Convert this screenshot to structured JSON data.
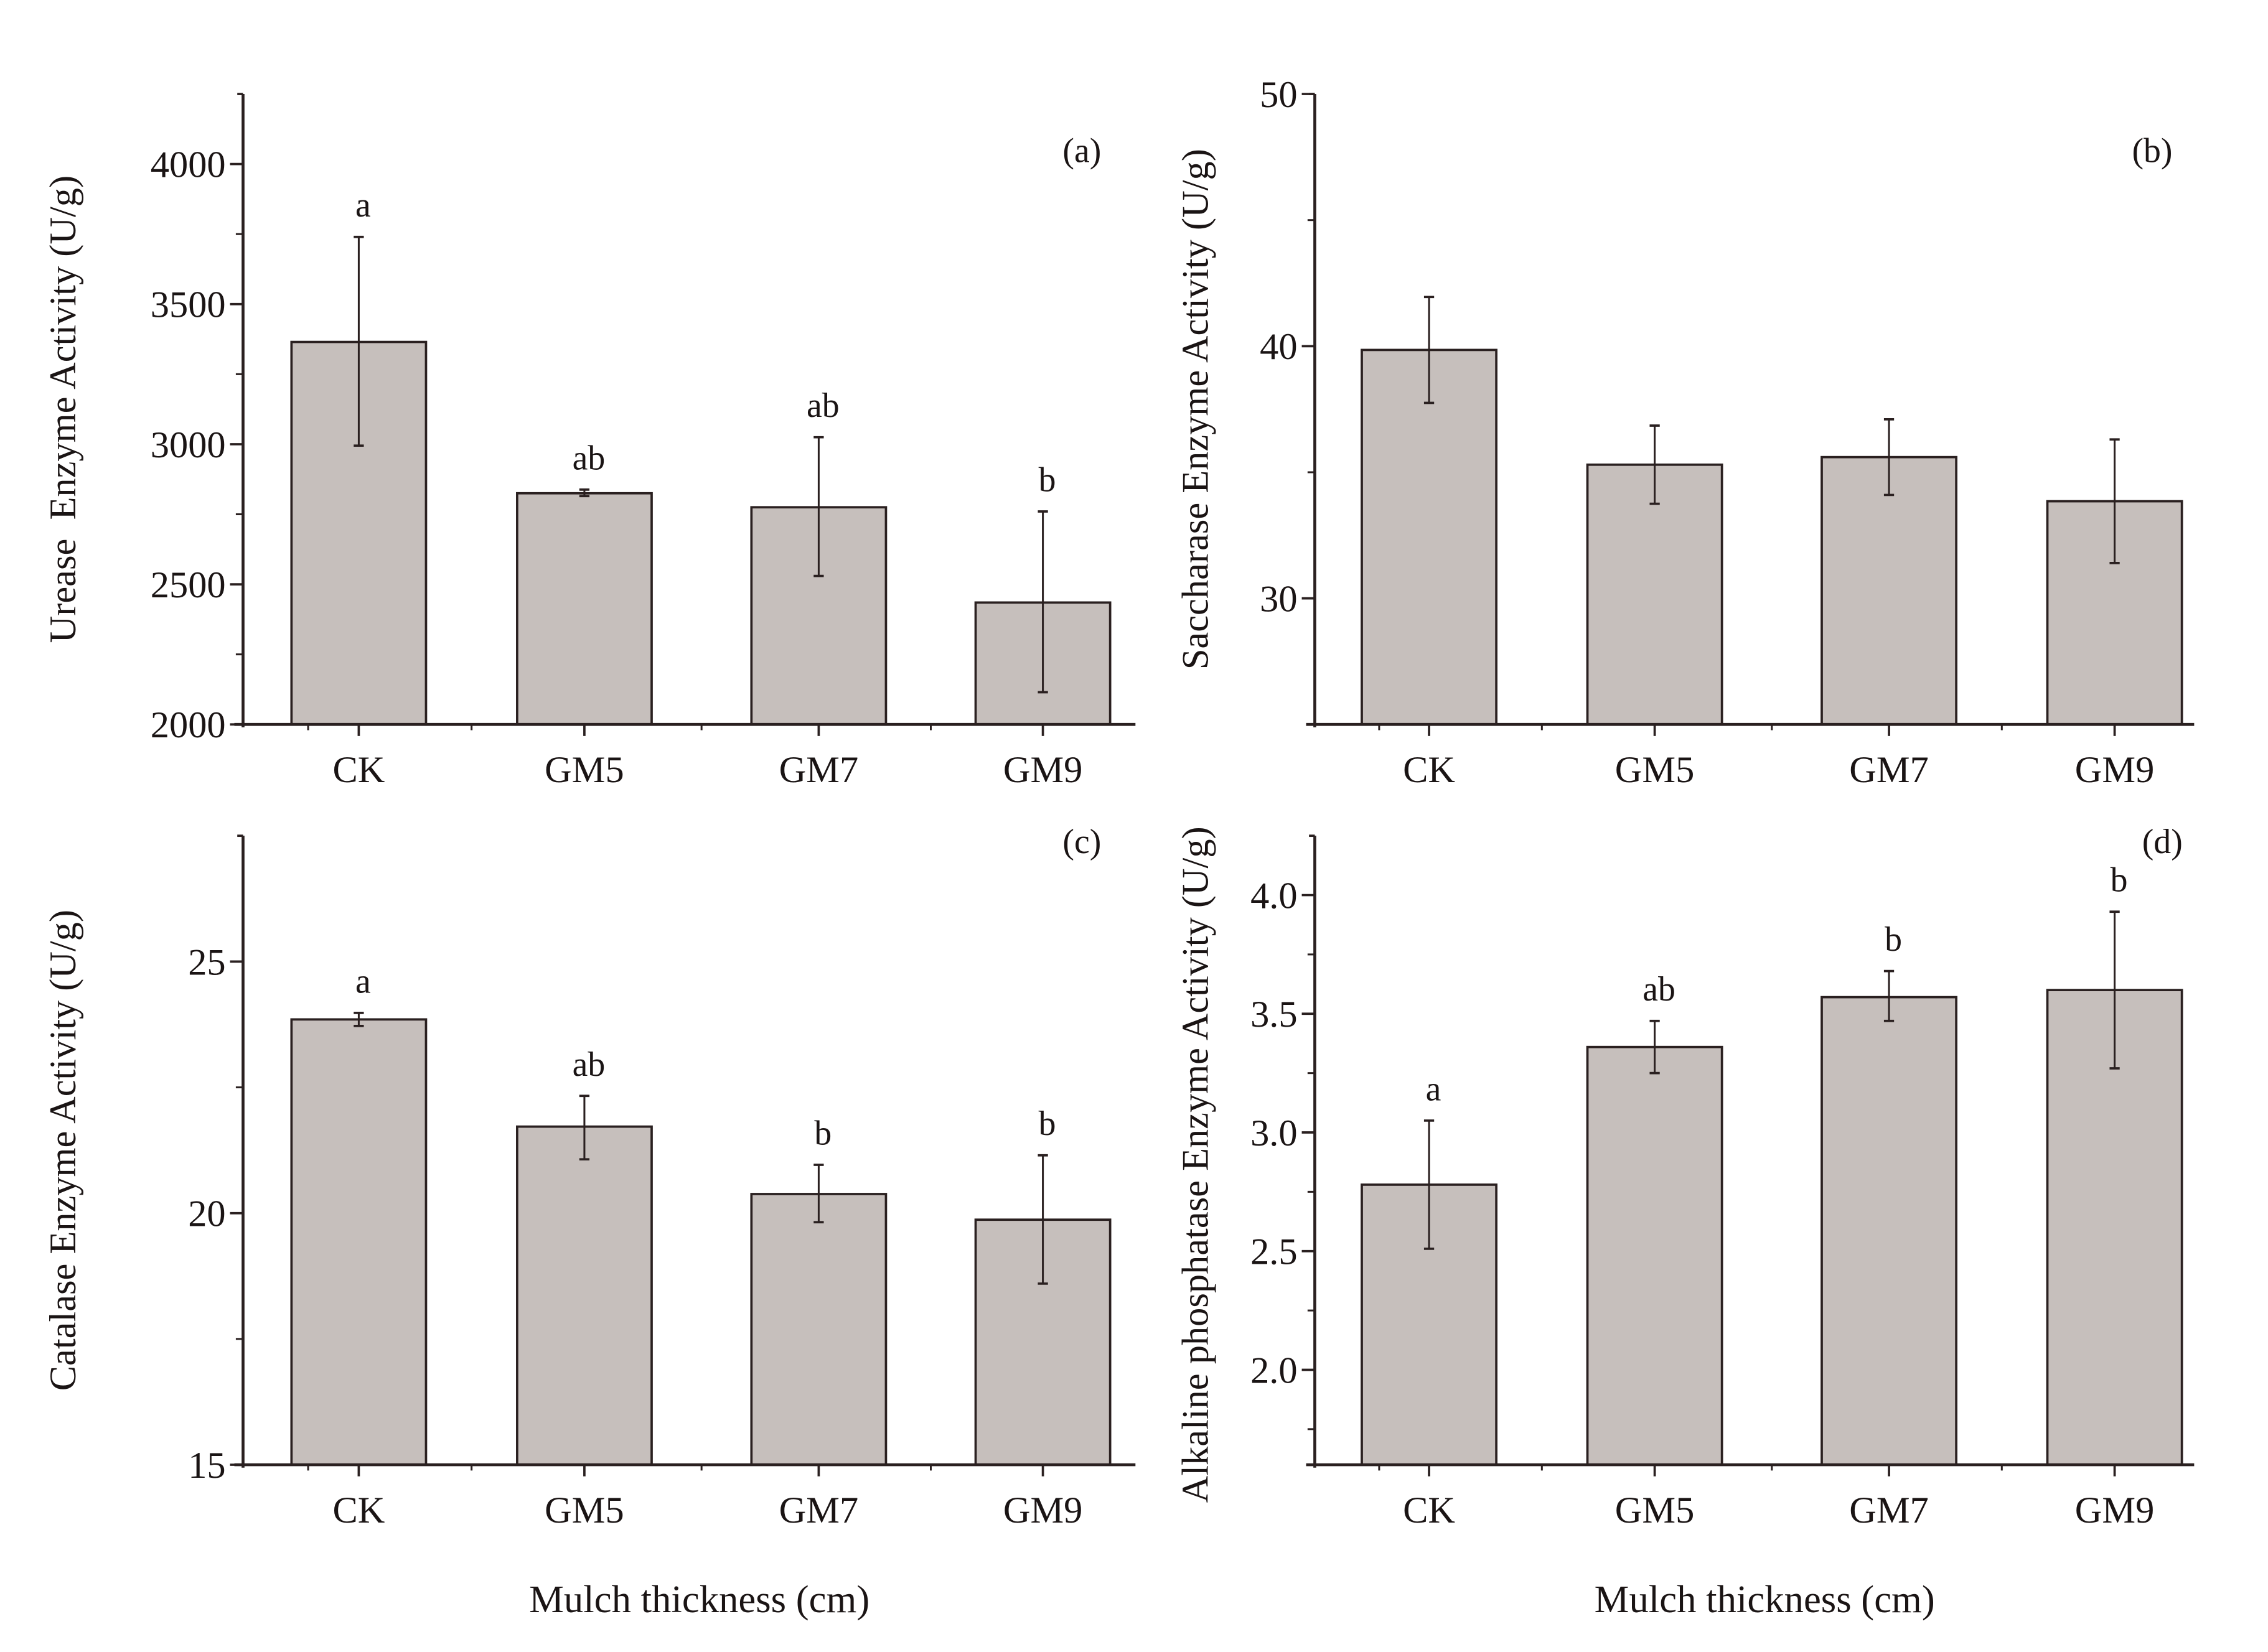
{
  "figure": {
    "xlabel": "Mulch thickness (cm)",
    "bar_fill": "#c6bfbc",
    "bar_stroke": "#2a2020",
    "axis_color": "#2a2020"
  },
  "chart_data": [
    {
      "type": "bar",
      "panel": "(a)",
      "title": "",
      "xlabel": "",
      "ylabel": "Urease  Enzyme Activity (U/g)",
      "categories": [
        "CK",
        "GM5",
        "GM7",
        "GM9"
      ],
      "values": [
        3365,
        2825,
        2775,
        2435
      ],
      "error_low": [
        2995,
        2815,
        2530,
        2115
      ],
      "error_high": [
        3740,
        2838,
        3025,
        2760
      ],
      "significance": [
        "a",
        "ab",
        "ab",
        "b"
      ],
      "ylim": [
        2000,
        4250
      ],
      "yticks": [
        2000,
        2500,
        3000,
        3500,
        4000
      ],
      "yminor": [
        2250,
        2750,
        3250,
        3750
      ],
      "grid": false
    },
    {
      "type": "bar",
      "panel": "(b)",
      "title": "",
      "xlabel": "",
      "ylabel": "Saccharase Enzyme Activity (U/g)",
      "categories": [
        "CK",
        "GM5",
        "GM7",
        "GM9"
      ],
      "values": [
        39.85,
        35.3,
        35.6,
        33.85
      ],
      "error_low": [
        37.75,
        33.75,
        34.1,
        31.4
      ],
      "error_high": [
        41.95,
        36.85,
        37.1,
        36.3
      ],
      "significance": [
        "",
        "",
        "",
        ""
      ],
      "ylim": [
        25,
        50
      ],
      "yticks": [
        30,
        40,
        50
      ],
      "yminor": [
        35,
        45
      ],
      "grid": false
    },
    {
      "type": "bar",
      "panel": "(c)",
      "title": "",
      "xlabel": "Mulch thickness (cm)",
      "ylabel": "Catalase Enzyme Activity (U/g)",
      "categories": [
        "CK",
        "GM5",
        "GM7",
        "GM9"
      ],
      "values": [
        23.85,
        21.72,
        20.38,
        19.87
      ],
      "error_low": [
        23.72,
        21.07,
        19.82,
        18.6
      ],
      "error_high": [
        23.98,
        22.33,
        20.96,
        21.15
      ],
      "significance": [
        "a",
        "ab",
        "b",
        "b"
      ],
      "ylim": [
        15,
        27.5
      ],
      "yticks": [
        15,
        20,
        25
      ],
      "yminor": [
        17.5,
        22.5
      ],
      "grid": false
    },
    {
      "type": "bar",
      "panel": "(d)",
      "title": "",
      "xlabel": "Mulch thickness (cm)",
      "ylabel": "Alkaline phosphatase Enzyme Activity (U/g)",
      "categories": [
        "CK",
        "GM5",
        "GM7",
        "GM9"
      ],
      "values": [
        2.78,
        3.36,
        3.57,
        3.6
      ],
      "error_low": [
        2.51,
        3.25,
        3.47,
        3.27
      ],
      "error_high": [
        3.05,
        3.47,
        3.68,
        3.93
      ],
      "significance": [
        "a",
        "ab",
        "b",
        "b"
      ],
      "ylim": [
        1.6,
        4.25
      ],
      "yticks": [
        2.0,
        2.5,
        3.0,
        3.5,
        4.0
      ],
      "yminor": [
        1.75,
        2.25,
        2.75,
        3.25,
        3.75
      ],
      "ytick_decimals": 1,
      "grid": false
    }
  ]
}
